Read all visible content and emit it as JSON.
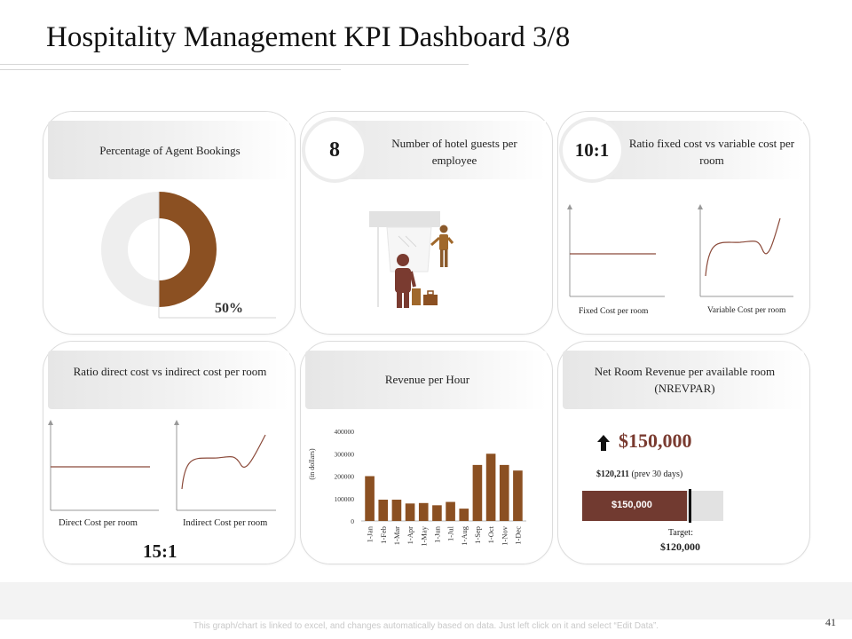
{
  "title": "Hospitality Management KPI Dashboard 3/8",
  "colors": {
    "brown": "#8b5022",
    "dark_brown": "#6b3a2a",
    "maroon_bar": "#713a30",
    "grey_ring": "#eeeeee"
  },
  "agent_bookings": {
    "label": "Percentage of Agent Bookings",
    "value_text": "50%",
    "value": 50
  },
  "guests": {
    "value": "8",
    "label": "Number of hotel guests per employee",
    "illustration": "hotel-reception-icon"
  },
  "fixed_variable": {
    "ratio": "10:1",
    "label": "Ratio fixed cost vs variable cost per room",
    "left_label": "Fixed Cost per room",
    "right_label": "Variable Cost per room"
  },
  "direct_indirect": {
    "label": "Ratio direct cost vs indirect cost per room",
    "left_label": "Direct Cost per room",
    "right_label": "Indirect Cost per room",
    "ratio": "15:1"
  },
  "revenue_hour": {
    "label": "Revenue per Hour",
    "ylabel": "(in dollars)",
    "yticks": [
      "0",
      "100000",
      "200000",
      "300000",
      "400000"
    ]
  },
  "nrevpar": {
    "label": "Net Room Revenue per available room (NREVPAR)",
    "arrow_icon": "up-arrow-icon",
    "value": "$150,000",
    "prev": "$120,211",
    "prev_suffix": "(prev 30 days)",
    "bar_label": "$150,000",
    "target_label": "Target:",
    "target_value": "$120,000",
    "progress_fraction": 0.74,
    "target_fraction": 0.76
  },
  "chart_data": {
    "type": "bar",
    "categories": [
      "1-Jan",
      "1-Feb",
      "1-Mar",
      "1-Apr",
      "1-May",
      "1-Jun",
      "1-Jul",
      "1-Aug",
      "1-Sep",
      "1-Oct",
      "1-Nov",
      "1-Dec"
    ],
    "values": [
      200000,
      95000,
      95000,
      78000,
      80000,
      70000,
      85000,
      55000,
      250000,
      300000,
      250000,
      225000
    ],
    "ylabel": "(in dollars)",
    "ylim": [
      0,
      400000
    ],
    "grid": false
  },
  "footer": {
    "note": "This graph/chart is linked to excel, and changes automatically based on data. Just left click on it and select “Edit Data”.",
    "page": "41"
  }
}
